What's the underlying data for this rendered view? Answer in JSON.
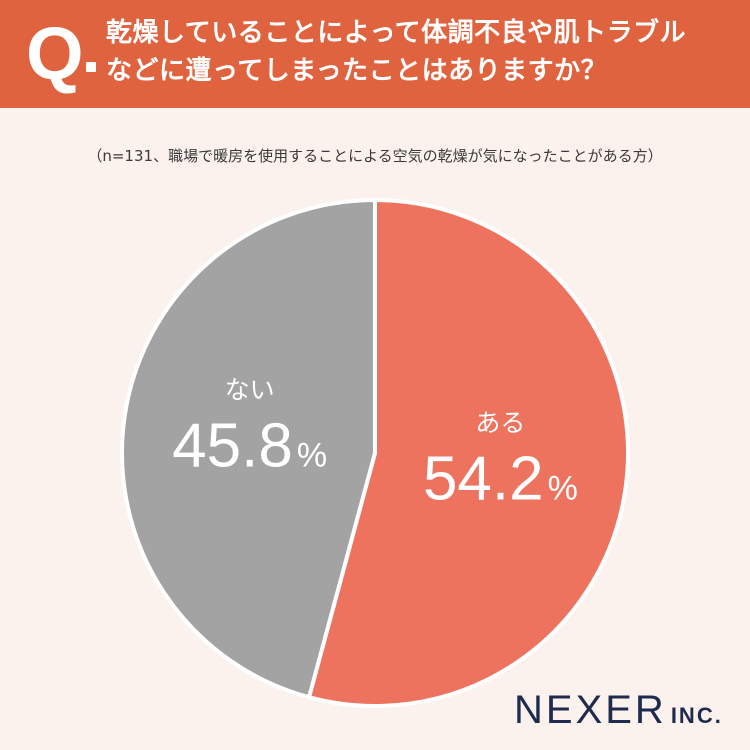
{
  "header": {
    "q_mark": "Q",
    "question_line1": "乾燥していることによって体調不良や肌トラブル",
    "question_line2": "などに遭ってしまったことはありますか？",
    "color": "#e0633f"
  },
  "note": "（n=131、職場で暖房を使用することによる空気の乾燥が気になったことがある方）",
  "chart_data": {
    "type": "pie",
    "unit": "%",
    "slices": [
      {
        "label": "ある",
        "value": 54.2,
        "color": "#ee735f"
      },
      {
        "label": "ない",
        "value": 45.8,
        "color": "#a3a3a3"
      }
    ]
  },
  "logo": {
    "main": "NEXER",
    "sub": "INC."
  }
}
